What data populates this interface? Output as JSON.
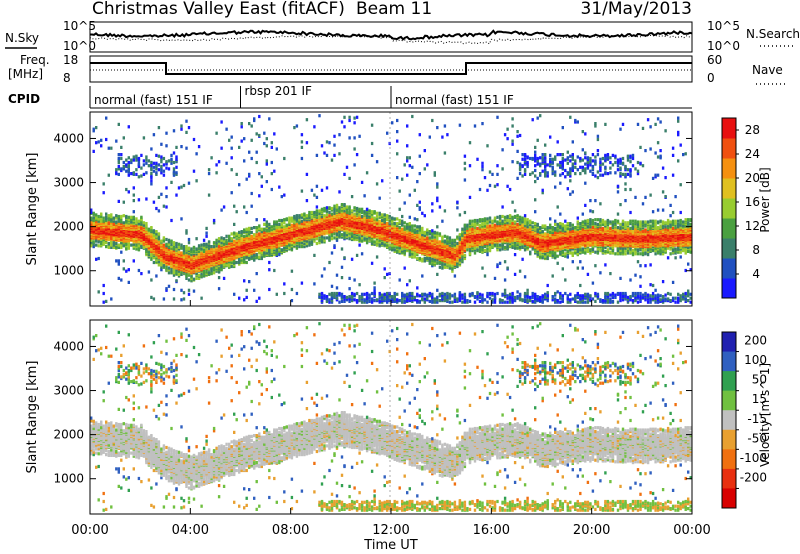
{
  "header": {
    "title": "Christmas Valley East (fitACF)",
    "beam": "Beam 11",
    "date": "31/May/2013"
  },
  "top_panels": {
    "nsky_label": "N.Sky",
    "nsearch_label": "N.Search",
    "nsky_ticks": [
      "10^5",
      "10^0"
    ],
    "nsearch_ticks": [
      "10^5",
      "10^0"
    ],
    "freq_label": "Freq.",
    "freq_unit": "[MHz]",
    "freq_ticks": [
      "18",
      "8"
    ],
    "nave_label": "Nave",
    "nave_ticks": [
      "60",
      "0"
    ],
    "cpid_label": "CPID",
    "cpid_segments": [
      {
        "label": "normal (fast) 151 IF",
        "start_h": 0,
        "end_h": 6
      },
      {
        "label": "rbsp 201 IF",
        "start_h": 6,
        "end_h": 12
      },
      {
        "label": "normal (fast) 151 IF",
        "start_h": 12,
        "end_h": 24
      }
    ]
  },
  "chart_data": [
    {
      "type": "heatmap",
      "name": "power",
      "ylabel": "Slant Range [km]",
      "ylim": [
        200,
        4600
      ],
      "yticks": [
        1000,
        2000,
        3000,
        4000
      ],
      "xlim": [
        0,
        24
      ],
      "colorbar_label": "Power [dB]",
      "colorbar_ticks": [
        4,
        8,
        12,
        16,
        20,
        24,
        28
      ],
      "colorbar_range": [
        0,
        30
      ],
      "band_ridge": [
        [
          0,
          1900
        ],
        [
          2,
          1800
        ],
        [
          3,
          1300
        ],
        [
          4,
          1100
        ],
        [
          5,
          1300
        ],
        [
          6,
          1500
        ],
        [
          8,
          1800
        ],
        [
          10,
          2100
        ],
        [
          11.5,
          1900
        ],
        [
          13,
          1600
        ],
        [
          14.5,
          1300
        ],
        [
          15,
          1700
        ],
        [
          16,
          1800
        ],
        [
          17,
          1850
        ],
        [
          18,
          1600
        ],
        [
          20,
          1750
        ],
        [
          22,
          1700
        ],
        [
          24,
          1750
        ]
      ]
    },
    {
      "type": "heatmap",
      "name": "velocity",
      "ylabel": "Slant Range [km]",
      "ylim": [
        200,
        4600
      ],
      "yticks": [
        1000,
        2000,
        3000,
        4000
      ],
      "xlim": [
        0,
        24
      ],
      "colorbar_label": "Velocity [m s^-1]",
      "colorbar_ticks": [
        200,
        100,
        50,
        15,
        -15,
        -50,
        -100,
        -200
      ],
      "xlabel": "Time UT",
      "xticks": [
        "00:00",
        "04:00",
        "08:00",
        "12:00",
        "16:00",
        "20:00",
        "00:00"
      ]
    }
  ],
  "colors": {
    "power_scale": [
      "#1a1aff",
      "#2050c0",
      "#3a7f6a",
      "#4aa040",
      "#98cc30",
      "#e0c020",
      "#f59010",
      "#f05010",
      "#e81010"
    ],
    "velocity_scale": [
      "#2020b0",
      "#3060c0",
      "#30a050",
      "#70c040",
      "#c0c0c0",
      "#e8a030",
      "#f07010",
      "#e83010",
      "#d80000"
    ]
  }
}
